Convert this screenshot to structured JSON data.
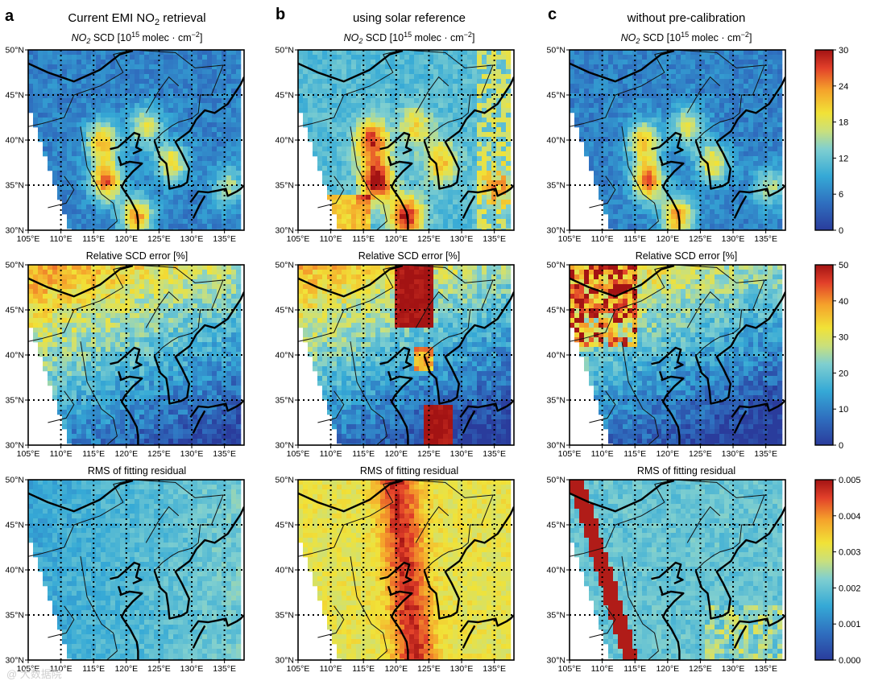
{
  "chart_data": {
    "type": "heatmap",
    "description_units": "Gridded satellite retrieval maps over East Asia",
    "columns": [
      {
        "letter": "a",
        "title_prefix": "Current EMI NO",
        "title_subscript": "2",
        "title_suffix": " retrieval"
      },
      {
        "letter": "b",
        "title_prefix": "using solar reference",
        "title_subscript": "",
        "title_suffix": ""
      },
      {
        "letter": "c",
        "title_prefix": "without pre-calibration",
        "title_subscript": "",
        "title_suffix": ""
      }
    ],
    "rows": [
      {
        "id": "no2_scd",
        "title_prefix": "NO",
        "title_sub": "2",
        "title_mid": " SCD [10",
        "title_sup": "15",
        "title_mid2": " molec · cm",
        "title_sup2": "−2",
        "title_end": "]",
        "colorbar": {
          "min": 0,
          "max": 30,
          "ticks": [
            "30",
            "24",
            "18",
            "12",
            "6",
            "0"
          ]
        }
      },
      {
        "id": "rel_error",
        "title_prefix": "Relative SCD error [%]",
        "colorbar": {
          "min": 0,
          "max": 50,
          "ticks": [
            "50",
            "40",
            "30",
            "20",
            "10",
            "0"
          ]
        }
      },
      {
        "id": "rms",
        "title_prefix": "RMS of fitting residual",
        "colorbar": {
          "min": 0,
          "max": 0.005,
          "ticks": [
            "0.005",
            "0.004",
            "0.003",
            "0.002",
            "0.001",
            "0.000"
          ]
        }
      }
    ],
    "x_ticks": [
      "105°E",
      "110°E",
      "115°E",
      "120°E",
      "125°E",
      "130°E",
      "135°E"
    ],
    "y_ticks": [
      "50°N",
      "45°N",
      "40°N",
      "35°N",
      "30°N"
    ],
    "lon_range": [
      105,
      138
    ],
    "lat_range": [
      30,
      50
    ],
    "grid": true,
    "colormap": "jet",
    "hotspots": {
      "no2_scd": [
        {
          "lon": 117.0,
          "lat": 35.5,
          "col_a": 26,
          "col_b": 32,
          "col_c": 26
        },
        {
          "lon": 121.5,
          "lat": 31.5,
          "col_a": 24,
          "col_b": 30,
          "col_c": 24
        },
        {
          "lon": 116.3,
          "lat": 39.9,
          "col_a": 22,
          "col_b": 28,
          "col_c": 22
        },
        {
          "lon": 126.9,
          "lat": 37.5,
          "col_a": 20,
          "col_b": 22,
          "col_c": 20
        },
        {
          "lon": 123.0,
          "lat": 41.5,
          "col_a": 18,
          "col_b": 20,
          "col_c": 18
        },
        {
          "lon": 135.5,
          "lat": 34.7,
          "col_a": 16,
          "col_b": 18,
          "col_c": 16
        }
      ],
      "baseline": {
        "col_a": 6,
        "col_b": 11,
        "col_c": 6
      },
      "rel_error_baseline": {
        "col_a": 18,
        "col_b": 16,
        "col_c": 15
      },
      "rms_baseline": {
        "col_a": 0.0017,
        "col_b": 0.0031,
        "col_c": 0.002
      }
    }
  },
  "watermark": "@ 大数据院"
}
